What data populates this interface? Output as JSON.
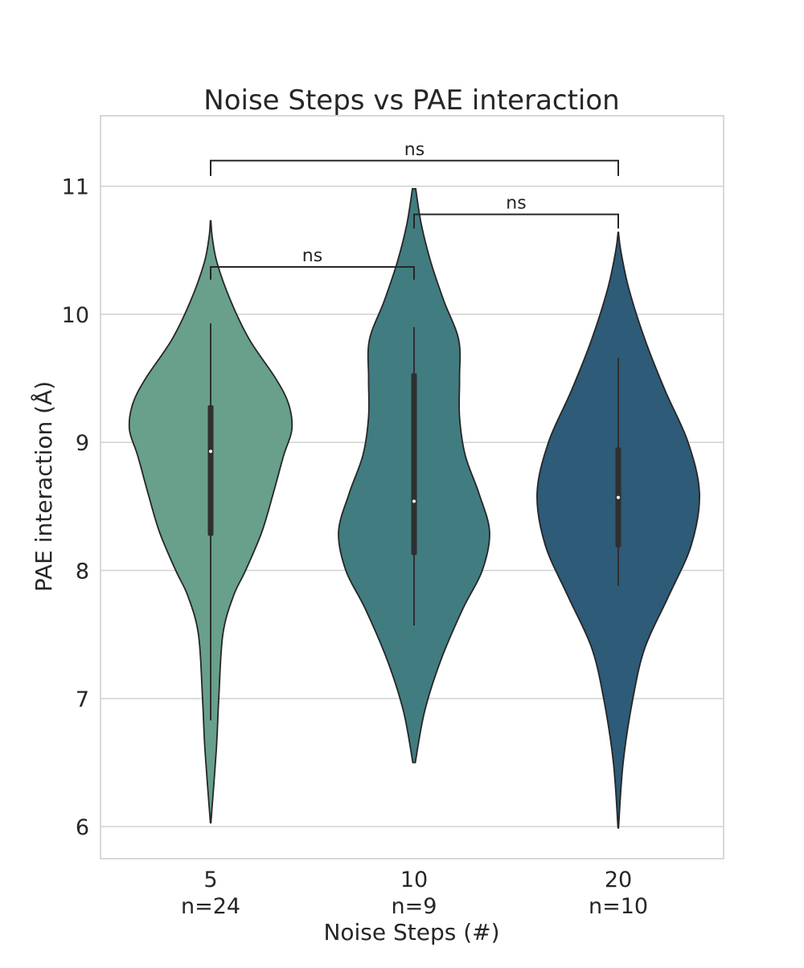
{
  "chart_data": {
    "type": "violin",
    "title": "Noise Steps vs PAE interaction",
    "xlabel": "Noise Steps (#)",
    "ylabel": "PAE interaction (Å)",
    "ylim": [
      5.75,
      11.55
    ],
    "yticks": [
      6,
      7,
      8,
      9,
      10,
      11
    ],
    "grid": true,
    "categories": [
      "5",
      "10",
      "20"
    ],
    "counts": [
      "n=24",
      "n=9",
      "n=10"
    ],
    "colors": [
      "#68a08b",
      "#417c81",
      "#2d5b78"
    ],
    "violins": [
      {
        "category": "5",
        "n": 24,
        "min": 6.03,
        "max": 10.73,
        "whisker_low": 6.83,
        "whisker_high": 9.93,
        "q1": 8.27,
        "median": 8.93,
        "q3": 9.29,
        "profile": [
          [
            6.03,
            0.003
          ],
          [
            6.6,
            0.07
          ],
          [
            7.0,
            0.1
          ],
          [
            7.5,
            0.15
          ],
          [
            7.8,
            0.28
          ],
          [
            8.0,
            0.43
          ],
          [
            8.3,
            0.63
          ],
          [
            8.6,
            0.77
          ],
          [
            8.9,
            0.9
          ],
          [
            9.1,
            1.0
          ],
          [
            9.3,
            0.96
          ],
          [
            9.5,
            0.8
          ],
          [
            9.8,
            0.48
          ],
          [
            10.1,
            0.25
          ],
          [
            10.4,
            0.08
          ],
          [
            10.6,
            0.02
          ],
          [
            10.73,
            0.003
          ]
        ]
      },
      {
        "category": "10",
        "n": 9,
        "min": 6.5,
        "max": 10.98,
        "whisker_low": 7.57,
        "whisker_high": 9.9,
        "q1": 8.12,
        "median": 8.54,
        "q3": 9.54,
        "profile": [
          [
            6.5,
            0.015
          ],
          [
            6.9,
            0.13
          ],
          [
            7.3,
            0.33
          ],
          [
            7.7,
            0.6
          ],
          [
            8.0,
            0.84
          ],
          [
            8.3,
            0.93
          ],
          [
            8.6,
            0.8
          ],
          [
            8.9,
            0.63
          ],
          [
            9.2,
            0.56
          ],
          [
            9.5,
            0.56
          ],
          [
            9.8,
            0.55
          ],
          [
            10.1,
            0.37
          ],
          [
            10.4,
            0.21
          ],
          [
            10.7,
            0.09
          ],
          [
            10.98,
            0.02
          ]
        ]
      },
      {
        "category": "20",
        "n": 10,
        "min": 5.99,
        "max": 10.64,
        "whisker_low": 7.88,
        "whisker_high": 9.66,
        "q1": 8.18,
        "median": 8.57,
        "q3": 8.96,
        "profile": [
          [
            5.99,
            0.003
          ],
          [
            6.5,
            0.06
          ],
          [
            7.0,
            0.18
          ],
          [
            7.4,
            0.33
          ],
          [
            7.8,
            0.62
          ],
          [
            8.2,
            0.9
          ],
          [
            8.6,
            1.0
          ],
          [
            9.0,
            0.86
          ],
          [
            9.4,
            0.58
          ],
          [
            9.8,
            0.33
          ],
          [
            10.2,
            0.13
          ],
          [
            10.5,
            0.03
          ],
          [
            10.64,
            0.003
          ]
        ]
      }
    ],
    "annotations": [
      {
        "from": "5",
        "to": "10",
        "label": "ns",
        "y": 10.37,
        "left_y": 10.27,
        "right_y": 10.27
      },
      {
        "from": "10",
        "to": "20",
        "label": "ns",
        "y": 10.78,
        "left_y": 10.67,
        "right_y": 10.67
      },
      {
        "from": "5",
        "to": "20",
        "label": "ns",
        "y": 11.2,
        "left_y": 11.08,
        "right_y": 11.08
      }
    ]
  }
}
